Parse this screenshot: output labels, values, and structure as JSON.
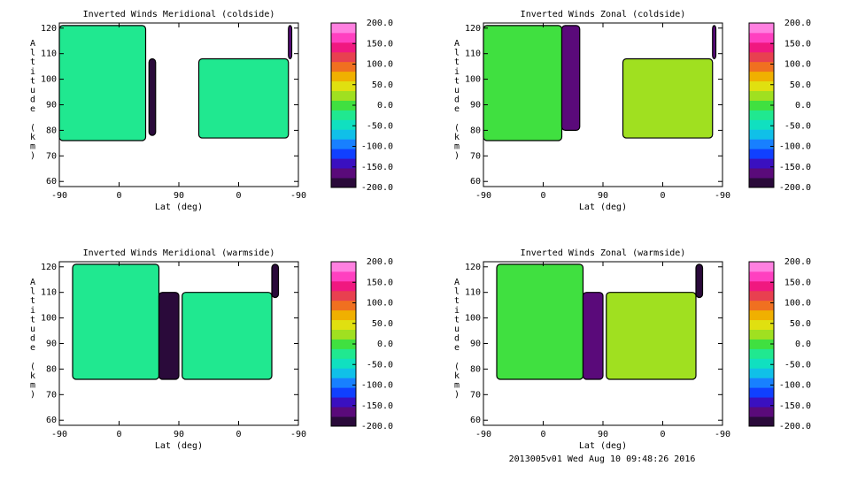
{
  "chart_data": [
    {
      "type": "heatmap",
      "title": "Inverted Winds Meridional (coldside)",
      "xlabel": "Lat (deg)",
      "ylabel": "Altitude (km)",
      "x_tick_labels": [
        "-90",
        "0",
        "90",
        "0",
        "-90"
      ],
      "y_ticks": [
        60,
        70,
        80,
        90,
        100,
        110,
        120
      ],
      "ylim": [
        58,
        122
      ],
      "colorbar_ticks": [
        "200.0",
        "150.0",
        "100.0",
        "50.0",
        "0.0",
        "-50.0",
        "-100.0",
        "-150.0",
        "-200.0"
      ],
      "clim": [
        -200,
        200
      ],
      "grid": false,
      "data_regions": [
        {
          "lat_range": [
            -90,
            40
          ],
          "alt_range": [
            76,
            121
          ],
          "typical_value": -25
        },
        {
          "lat_range": [
            45,
            55
          ],
          "alt_range": [
            78,
            108
          ],
          "typical_value": -180
        },
        {
          "lat_range": [
            120,
            255
          ],
          "alt_range": [
            77,
            108
          ],
          "typical_value": -20
        },
        {
          "lat_range": [
            255,
            260
          ],
          "alt_range": [
            108,
            121
          ],
          "typical_value": -170
        }
      ]
    },
    {
      "type": "heatmap",
      "title": "Inverted Winds Zonal (coldside)",
      "xlabel": "Lat (deg)",
      "ylabel": "Altitude (km)",
      "x_tick_labels": [
        "-90",
        "0",
        "90",
        "0",
        "-90"
      ],
      "y_ticks": [
        60,
        70,
        80,
        90,
        100,
        110,
        120
      ],
      "ylim": [
        58,
        122
      ],
      "colorbar_ticks": [
        "200.0",
        "150.0",
        "100.0",
        "50.0",
        "0.0",
        "-50.0",
        "-100.0",
        "-150.0",
        "-200.0"
      ],
      "clim": [
        -200,
        200
      ],
      "grid": false,
      "data_regions": [
        {
          "lat_range": [
            -90,
            28
          ],
          "alt_range": [
            76,
            121
          ],
          "typical_value": -10
        },
        {
          "lat_range": [
            28,
            55
          ],
          "alt_range": [
            80,
            121
          ],
          "typical_value": -170
        },
        {
          "lat_range": [
            120,
            255
          ],
          "alt_range": [
            77,
            108
          ],
          "typical_value": 20
        },
        {
          "lat_range": [
            255,
            260
          ],
          "alt_range": [
            108,
            121
          ],
          "typical_value": -170
        }
      ]
    },
    {
      "type": "heatmap",
      "title": "Inverted Winds Meridional (warmside)",
      "xlabel": "Lat (deg)",
      "ylabel": "Altitude (km)",
      "x_tick_labels": [
        "-90",
        "0",
        "90",
        "0",
        "-90"
      ],
      "y_ticks": [
        60,
        70,
        80,
        90,
        100,
        110,
        120
      ],
      "ylim": [
        58,
        122
      ],
      "colorbar_ticks": [
        "200.0",
        "150.0",
        "100.0",
        "50.0",
        "0.0",
        "-50.0",
        "-100.0",
        "-150.0",
        "-200.0"
      ],
      "clim": [
        -200,
        200
      ],
      "grid": false,
      "data_regions": [
        {
          "lat_range": [
            -70,
            60
          ],
          "alt_range": [
            76,
            121
          ],
          "typical_value": -15
        },
        {
          "lat_range": [
            60,
            90
          ],
          "alt_range": [
            76,
            110
          ],
          "typical_value": -190
        },
        {
          "lat_range": [
            95,
            230
          ],
          "alt_range": [
            76,
            110
          ],
          "typical_value": -20
        },
        {
          "lat_range": [
            230,
            240
          ],
          "alt_range": [
            108,
            121
          ],
          "typical_value": -190
        }
      ]
    },
    {
      "type": "heatmap",
      "title": "Inverted Winds Zonal (warmside)",
      "xlabel": "Lat (deg)",
      "ylabel": "Altitude (km)",
      "x_tick_labels": [
        "-90",
        "0",
        "90",
        "0",
        "-90"
      ],
      "y_ticks": [
        60,
        70,
        80,
        90,
        100,
        110,
        120
      ],
      "ylim": [
        58,
        122
      ],
      "colorbar_ticks": [
        "200.0",
        "150.0",
        "100.0",
        "50.0",
        "0.0",
        "-50.0",
        "-100.0",
        "-150.0",
        "-200.0"
      ],
      "clim": [
        -200,
        200
      ],
      "grid": false,
      "data_regions": [
        {
          "lat_range": [
            -70,
            60
          ],
          "alt_range": [
            76,
            121
          ],
          "typical_value": 10
        },
        {
          "lat_range": [
            60,
            90
          ],
          "alt_range": [
            76,
            110
          ],
          "typical_value": -160
        },
        {
          "lat_range": [
            95,
            230
          ],
          "alt_range": [
            76,
            110
          ],
          "typical_value": 15
        },
        {
          "lat_range": [
            230,
            240
          ],
          "alt_range": [
            108,
            121
          ],
          "typical_value": -190
        }
      ]
    }
  ],
  "footer": "2013005v01 Wed Aug 10 09:48:26 2016",
  "colors": {
    "colorbar_steps": [
      "#2a0a3a",
      "#5a0a7a",
      "#3a10c0",
      "#1040ff",
      "#1880ff",
      "#10c0e8",
      "#10e0c0",
      "#20e890",
      "#40e040",
      "#a0e020",
      "#e0e010",
      "#f0b000",
      "#f07020",
      "#e84050",
      "#f01880",
      "#ff40c0",
      "#ff80e0"
    ]
  }
}
